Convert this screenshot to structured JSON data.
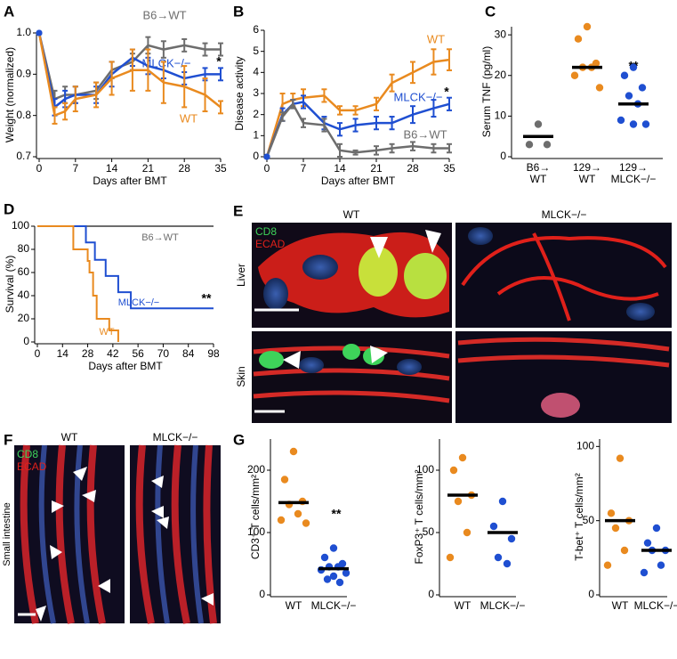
{
  "chart_data": [
    {
      "type": "line",
      "panel_label": "A",
      "ylabel": "Weight (normalized)",
      "xlabel": "Days after BMT",
      "x": [
        0,
        3,
        5,
        7,
        11,
        14,
        18,
        21,
        24,
        28,
        32,
        35
      ],
      "xlim": [
        0,
        35
      ],
      "xticks": [
        0,
        7,
        14,
        21,
        28,
        35
      ],
      "ylim": [
        0.7,
        1.0
      ],
      "yticks": [
        0.7,
        0.8,
        0.9,
        {
          "value": 1,
          "label": "1.0"
        }
      ],
      "series": [
        {
          "name": "B6→WT",
          "color": "#6d6d6d",
          "values": [
            1.0,
            0.84,
            0.85,
            0.85,
            0.86,
            0.91,
            0.93,
            0.97,
            0.96,
            0.97,
            0.96,
            0.96
          ],
          "errors": [
            0,
            0.02,
            0.02,
            0.02,
            0.02,
            0.02,
            0.02,
            0.02,
            0.02,
            0.015,
            0.015,
            0.015
          ]
        },
        {
          "name": "MLCK−/−",
          "color": "#1f4fd1",
          "values": [
            1.0,
            0.82,
            0.84,
            0.85,
            0.85,
            0.9,
            0.94,
            0.92,
            0.91,
            0.89,
            0.9,
            0.9
          ],
          "errors": [
            0,
            0.02,
            0.02,
            0.02,
            0.02,
            0.03,
            0.02,
            0.02,
            0.02,
            0.015,
            0.015,
            0.015
          ]
        },
        {
          "name": "WT",
          "color": "#e98a1f",
          "values": [
            1.0,
            0.8,
            0.81,
            0.84,
            0.85,
            0.89,
            0.91,
            0.91,
            0.88,
            0.87,
            0.85,
            0.82
          ],
          "errors": [
            0,
            0.02,
            0.02,
            0.03,
            0.03,
            0.04,
            0.05,
            0.05,
            0.05,
            0.05,
            0.04,
            0.015
          ]
        }
      ],
      "annotations": [
        "*"
      ]
    },
    {
      "type": "line",
      "panel_label": "B",
      "ylabel": "Disease activity",
      "xlabel": "Days after BMT",
      "x": [
        0,
        3,
        5,
        7,
        11,
        14,
        17,
        21,
        24,
        28,
        32,
        35
      ],
      "xlim": [
        0,
        35
      ],
      "xticks": [
        0,
        7,
        14,
        21,
        28,
        35
      ],
      "ylim": [
        0,
        6
      ],
      "yticks": [
        0,
        1,
        2,
        3,
        4,
        5,
        6
      ],
      "series": [
        {
          "name": "WT",
          "color": "#e98a1f",
          "values": [
            0,
            2.5,
            2.7,
            2.8,
            2.9,
            2.2,
            2.2,
            2.5,
            3.5,
            4.0,
            4.5,
            4.6
          ],
          "errors": [
            0,
            0.5,
            0.3,
            0.4,
            0.3,
            0.2,
            0.2,
            0.3,
            0.4,
            0.5,
            0.6,
            0.5
          ]
        },
        {
          "name": "MLCK−/−",
          "color": "#1f4fd1",
          "values": [
            0,
            2.0,
            2.5,
            2.6,
            1.6,
            1.3,
            1.5,
            1.6,
            1.6,
            2.0,
            2.3,
            2.5
          ],
          "errors": [
            0,
            0.3,
            0.2,
            0.3,
            0.3,
            0.3,
            0.3,
            0.3,
            0.3,
            0.4,
            0.4,
            0.3
          ]
        },
        {
          "name": "B6→WT",
          "color": "#6d6d6d",
          "values": [
            0,
            1.9,
            2.5,
            1.6,
            1.5,
            0.3,
            0.2,
            0.3,
            0.4,
            0.5,
            0.4,
            0.4
          ],
          "errors": [
            0,
            0.2,
            0.2,
            0.2,
            0.3,
            0.3,
            0.1,
            0.2,
            0.2,
            0.2,
            0.2,
            0.2
          ]
        }
      ],
      "annotations": [
        "*"
      ]
    },
    {
      "type": "strip",
      "panel_label": "C",
      "ylabel": "Serum TNF (pg/ml)",
      "categories": [
        "B6→\nWT",
        "129→\nWT",
        "129→\nMLCK−/−"
      ],
      "colors": [
        "#6d6d6d",
        "#e98a1f",
        "#1f4fd1"
      ],
      "ylim": [
        0,
        32
      ],
      "yticks": [
        0,
        10,
        20,
        30
      ],
      "values": [
        [
          8,
          3,
          3
        ],
        [
          32,
          29,
          23,
          22,
          22,
          20,
          17
        ],
        [
          22,
          20,
          17,
          15,
          13,
          9,
          8,
          8
        ]
      ],
      "medians": [
        5,
        22,
        13
      ],
      "annotations": [
        "**"
      ]
    },
    {
      "type": "step",
      "panel_label": "D",
      "ylabel": "Survival (%)",
      "xlabel": "Days after BMT",
      "xlim": [
        0,
        98
      ],
      "xticks": [
        0,
        14,
        28,
        42,
        56,
        70,
        84,
        98
      ],
      "ylim": [
        0,
        100
      ],
      "yticks": [
        0,
        20,
        40,
        60,
        80,
        100
      ],
      "series": [
        {
          "name": "B6→WT",
          "color": "#6d6d6d",
          "x": [
            0,
            98
          ],
          "values": [
            100,
            100
          ]
        },
        {
          "name": "MLCK−/−",
          "color": "#1f4fd1",
          "x": [
            0,
            27,
            32,
            38,
            45,
            52,
            98
          ],
          "values": [
            100,
            86,
            71,
            57,
            43,
            29,
            29
          ]
        },
        {
          "name": "WT",
          "color": "#e98a1f",
          "x": [
            0,
            20,
            28,
            29,
            31,
            33,
            40,
            45
          ],
          "values": [
            100,
            80,
            70,
            60,
            40,
            20,
            10,
            0
          ]
        }
      ],
      "annotations": [
        "**"
      ]
    },
    {
      "type": "strip",
      "panel_label": "G",
      "ylabel": "CD3⁺ T cells/mm²",
      "categories": [
        "WT",
        "MLCK−/−"
      ],
      "colors": [
        "#e98a1f",
        "#1f4fd1"
      ],
      "ylim": [
        0,
        250
      ],
      "yticks": [
        0,
        100,
        200
      ],
      "values": [
        [
          230,
          185,
          150,
          145,
          130,
          120,
          115
        ],
        [
          75,
          60,
          50,
          45,
          45,
          40,
          35,
          30,
          25,
          20
        ]
      ],
      "medians": [
        148,
        42
      ],
      "annotations": [
        "**"
      ]
    },
    {
      "type": "strip",
      "ylabel": "FoxP3⁺ T cells/mm²",
      "categories": [
        "WT",
        "MLCK−/−"
      ],
      "colors": [
        "#e98a1f",
        "#1f4fd1"
      ],
      "ylim": [
        0,
        125
      ],
      "yticks": [
        0,
        50,
        100
      ],
      "values": [
        [
          110,
          100,
          80,
          75,
          50,
          30
        ],
        [
          75,
          55,
          45,
          30,
          25
        ]
      ],
      "medians": [
        80,
        50
      ]
    },
    {
      "type": "strip",
      "ylabel": "T-bet⁺ T cells/mm²",
      "categories": [
        "WT",
        "MLCK−/−"
      ],
      "colors": [
        "#e98a1f",
        "#1f4fd1"
      ],
      "ylim": [
        0,
        105
      ],
      "yticks": [
        0,
        50,
        100
      ],
      "values": [
        [
          92,
          55,
          50,
          45,
          30,
          20
        ],
        [
          45,
          35,
          30,
          30,
          20,
          15
        ]
      ],
      "medians": [
        50,
        30
      ]
    }
  ],
  "images": {
    "E": {
      "panel_label": "E",
      "columns": [
        "WT",
        "MLCK−/−"
      ],
      "rows": [
        "Liver",
        "Skin"
      ],
      "stains": [
        "CD8",
        "ECAD"
      ]
    },
    "F": {
      "panel_label": "F",
      "columns": [
        "WT",
        "MLCK−/−"
      ],
      "row": "Small intestine",
      "stains": [
        "CD8",
        "ECAD"
      ]
    }
  }
}
